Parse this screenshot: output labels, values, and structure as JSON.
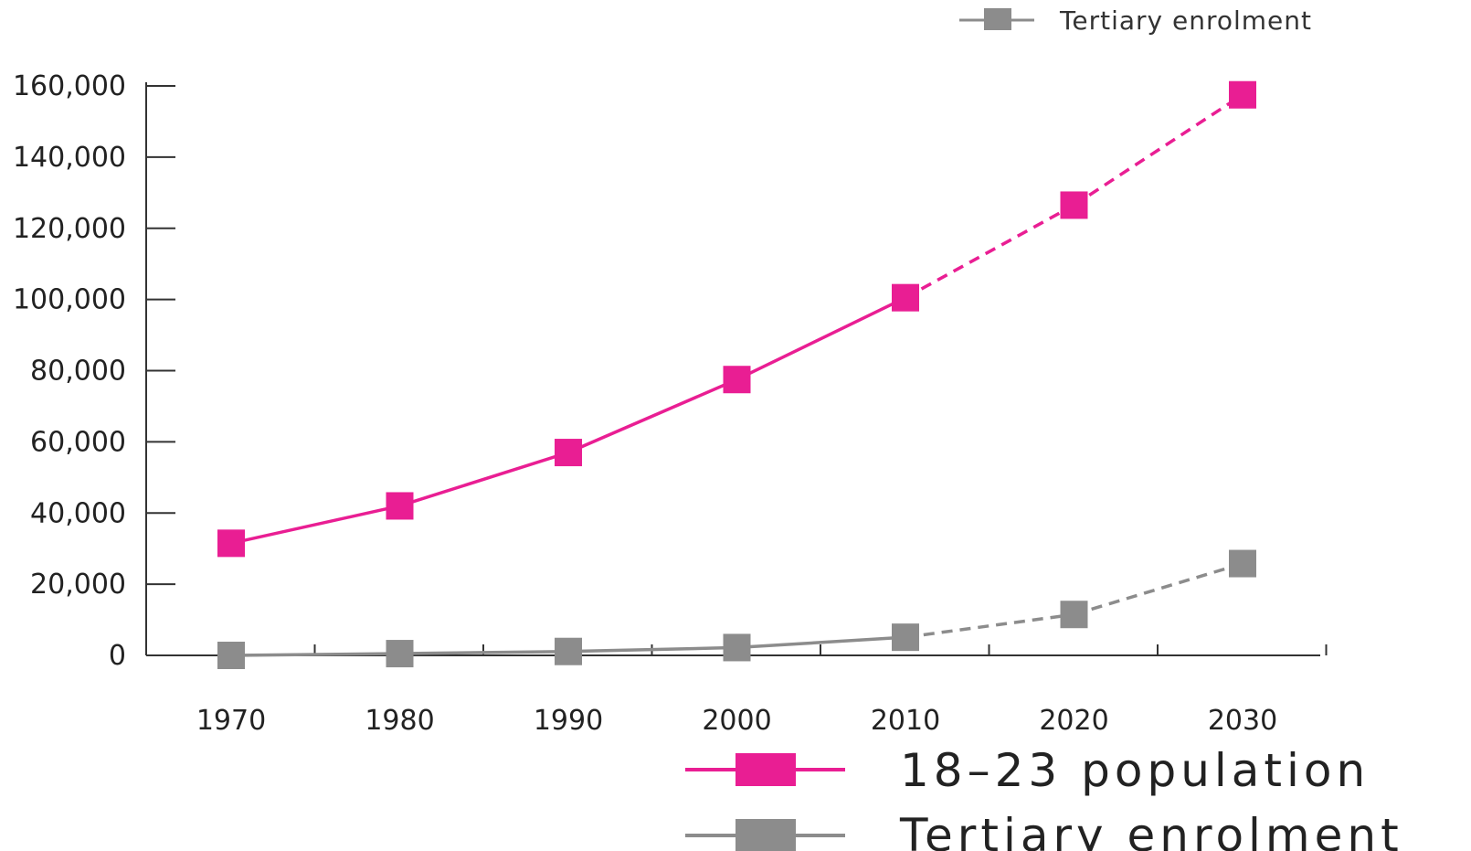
{
  "chart_data": {
    "type": "line",
    "x": [
      1970,
      1980,
      1990,
      2000,
      2010,
      2020,
      2030
    ],
    "x_tick_labels": [
      "1970",
      "1980",
      "1990",
      "2000",
      "2010",
      "2020",
      "2030"
    ],
    "y_tick_labels": [
      "0",
      "20,000",
      "40,000",
      "60,000",
      "80,000",
      "100,000",
      "120,000",
      "140,000",
      "160,000"
    ],
    "ylim": [
      0,
      160000
    ],
    "projection_starts_after": 2010,
    "series": [
      {
        "name": "18–23 population",
        "color": "#e91e93",
        "marker": "square",
        "values": [
          31500,
          42000,
          57000,
          77500,
          100500,
          126500,
          157500
        ]
      },
      {
        "name": "Tertiary enrolment",
        "color": "#8c8c8c",
        "marker": "square",
        "values": [
          0,
          500,
          1100,
          2200,
          5100,
          11500,
          25800
        ]
      }
    ],
    "legend_top": {
      "label": "Tertiary enrolment"
    },
    "legend_bottom": [
      {
        "label": "18–23 population",
        "color": "#e91e93"
      },
      {
        "label": "Tertiary enrolment",
        "color": "#8c8c8c"
      }
    ],
    "grid": false
  }
}
